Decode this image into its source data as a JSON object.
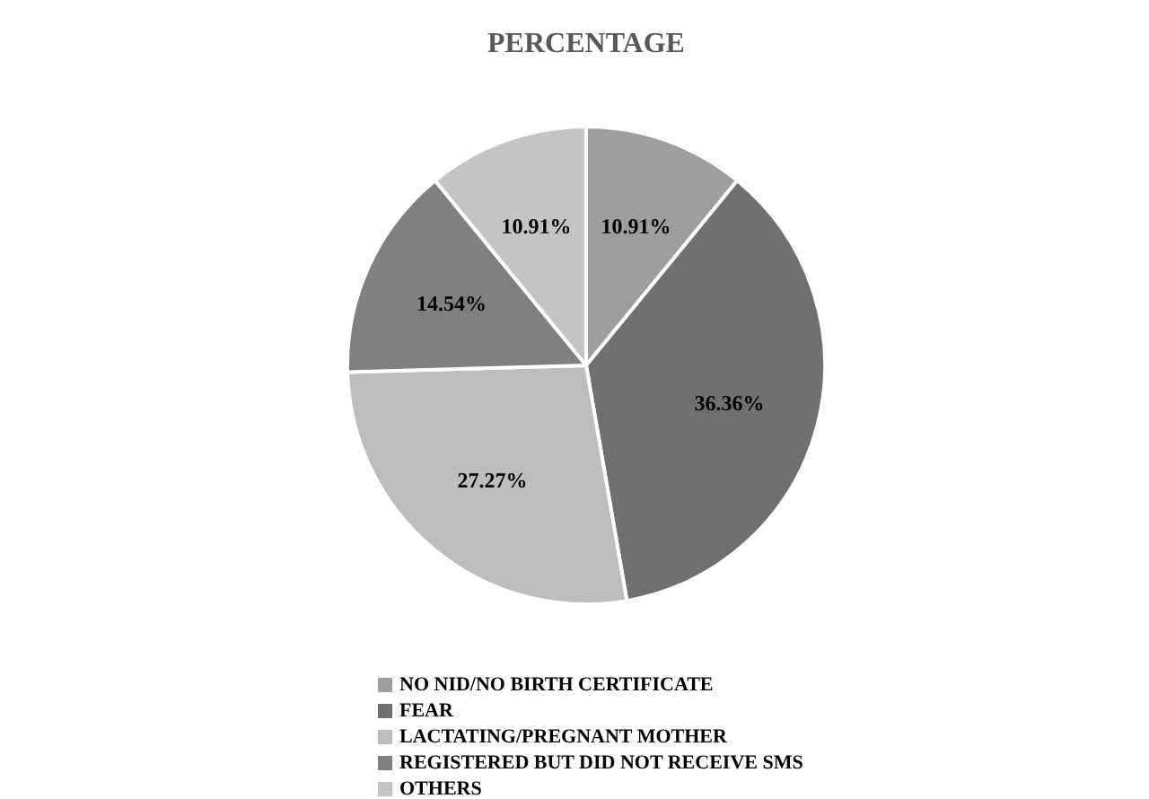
{
  "chart_data": {
    "type": "pie",
    "title": "PERCENTAGE",
    "categories": [
      "NO NID/NO BIRTH CERTIFICATE",
      "FEAR",
      "LACTATING/PREGNANT MOTHER",
      "REGISTERED BUT DID NOT RECEIVE SMS",
      "OTHERS"
    ],
    "values": [
      10.91,
      36.36,
      27.27,
      14.54,
      10.91
    ],
    "value_labels": [
      "10.91%",
      "36.36%",
      "27.27%",
      "14.54%",
      "10.91%"
    ],
    "colors": [
      "#9e9e9e",
      "#707070",
      "#bdbdbd",
      "#808080",
      "#c4c4c4"
    ],
    "legend": "bottom"
  }
}
